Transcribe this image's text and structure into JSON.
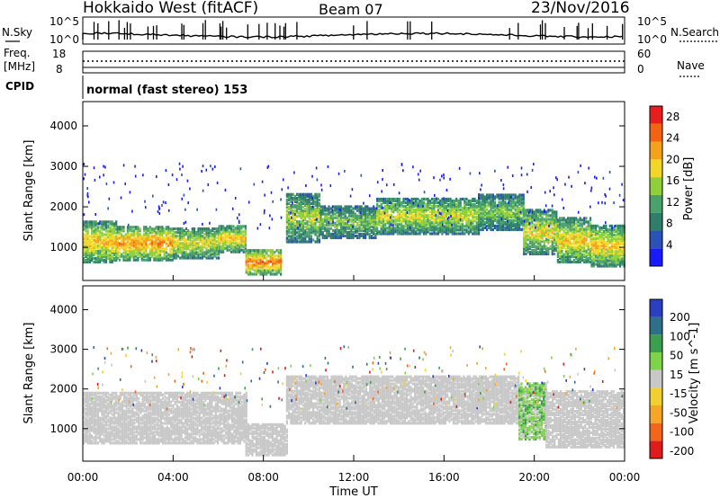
{
  "header": {
    "station": "Hokkaido West (fitACF)",
    "beam": "Beam 07",
    "date": "23/Nov/2016"
  },
  "noise_panel": {
    "left_label": "N.Sky",
    "left_ticks": [
      "10^5",
      "10^0"
    ],
    "right_label": "N.Search",
    "right_ticks": [
      "10^5",
      "10^0"
    ]
  },
  "freq_panel": {
    "left_label_line1": "Freq.",
    "left_label_line2": "[MHz]",
    "left_ticks": [
      "18",
      "8"
    ],
    "right_label": "Nave",
    "right_ticks": [
      "60",
      "0"
    ]
  },
  "cpid_panel": {
    "label": "CPID",
    "text": "normal (fast stereo) 153"
  },
  "chart_data": [
    {
      "type": "heatmap",
      "name": "power",
      "ylabel": "Slant Range [km]",
      "ylim": [
        180,
        4600
      ],
      "yticks": [
        1000,
        2000,
        3000,
        4000
      ],
      "xlim": [
        0,
        24
      ],
      "colorbar_label": "Power [dB]",
      "colorbar_ticks": [
        "4",
        "8",
        "12",
        "16",
        "20",
        "24",
        "28"
      ],
      "colorbar_range": [
        0,
        30
      ],
      "bands": [
        {
          "t0": 0.0,
          "t1": 1.5,
          "r0": 600,
          "r1": 1600,
          "v": 18
        },
        {
          "t0": 1.5,
          "t1": 4.0,
          "r0": 650,
          "r1": 1500,
          "v": 20
        },
        {
          "t0": 4.0,
          "t1": 6.0,
          "r0": 700,
          "r1": 1450,
          "v": 16
        },
        {
          "t0": 6.0,
          "t1": 7.2,
          "r0": 850,
          "r1": 1500,
          "v": 17
        },
        {
          "t0": 7.2,
          "t1": 8.8,
          "r0": 300,
          "r1": 900,
          "v": 22
        },
        {
          "t0": 9.0,
          "t1": 10.5,
          "r0": 1100,
          "r1": 2300,
          "v": 14
        },
        {
          "t0": 10.5,
          "t1": 13.0,
          "r0": 1200,
          "r1": 2000,
          "v": 12
        },
        {
          "t0": 13.0,
          "t1": 17.5,
          "r0": 1300,
          "r1": 2200,
          "v": 15
        },
        {
          "t0": 17.5,
          "t1": 19.5,
          "r0": 1400,
          "r1": 2300,
          "v": 12
        },
        {
          "t0": 19.5,
          "t1": 21.0,
          "r0": 800,
          "r1": 1900,
          "v": 16
        },
        {
          "t0": 21.0,
          "t1": 22.5,
          "r0": 600,
          "r1": 1700,
          "v": 17
        },
        {
          "t0": 22.5,
          "t1": 24.0,
          "r0": 500,
          "r1": 1500,
          "v": 18
        }
      ]
    },
    {
      "type": "heatmap",
      "name": "velocity",
      "ylabel": "Slant Range [km]",
      "ylim": [
        180,
        4600
      ],
      "yticks": [
        1000,
        2000,
        3000,
        4000
      ],
      "xlim": [
        0,
        24
      ],
      "xticks": [
        "00:00",
        "04:00",
        "08:00",
        "12:00",
        "16:00",
        "20:00",
        "00:00"
      ],
      "xlabel": "Time UT",
      "colorbar_label": "Velocity [m s^-1]",
      "colorbar_ticks": [
        "200",
        "100",
        "50",
        "15",
        "-15",
        "-50",
        "-100",
        "-200"
      ],
      "bands": [
        {
          "t0": 0.0,
          "t1": 7.2,
          "r0": 600,
          "r1": 1900,
          "v": 0
        },
        {
          "t0": 7.2,
          "t1": 9.0,
          "r0": 300,
          "r1": 1100,
          "v": 0
        },
        {
          "t0": 9.0,
          "t1": 19.3,
          "r0": 1100,
          "r1": 2300,
          "v": 0
        },
        {
          "t0": 19.3,
          "t1": 20.5,
          "r0": 700,
          "r1": 2100,
          "v": 40
        },
        {
          "t0": 20.5,
          "t1": 24.0,
          "r0": 500,
          "r1": 1900,
          "v": 0
        }
      ]
    }
  ],
  "colors": {
    "power_scale": [
      "#1a1aff",
      "#2b52b6",
      "#2f7e6a",
      "#4aa26a",
      "#8fcf3a",
      "#f2d72a",
      "#f5a21b",
      "#f26313",
      "#e81e1e"
    ],
    "velocity_scale": [
      "#e01b1b",
      "#f2651b",
      "#f7a526",
      "#f0d030",
      "#c8c8c8",
      "#7fd34a",
      "#3ba04e",
      "#2e6f8a",
      "#2b3fc0"
    ]
  }
}
